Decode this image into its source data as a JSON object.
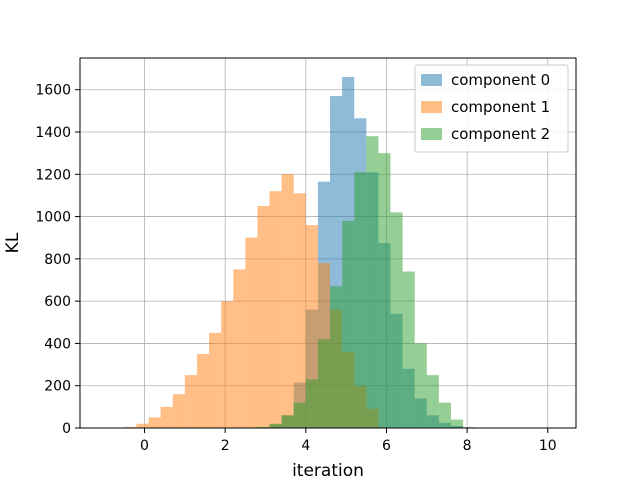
{
  "chart_data": {
    "type": "histogram",
    "title": "",
    "xlabel": "iteration",
    "ylabel": "KL",
    "xlim": [
      -1.6,
      10.7
    ],
    "ylim": [
      0,
      1750
    ],
    "xticks": [
      0,
      2,
      4,
      6,
      8,
      10
    ],
    "yticks": [
      0,
      200,
      400,
      600,
      800,
      1000,
      1200,
      1400,
      1600
    ],
    "grid": true,
    "legend_position": "top-right",
    "bar_alpha": 0.5,
    "series": [
      {
        "name": "component 0",
        "color": "#1f77b4",
        "bin_edges": [
          2.5,
          2.8,
          3.1,
          3.4,
          3.7,
          4.0,
          4.3,
          4.6,
          4.9,
          5.2,
          5.5,
          5.8,
          6.1,
          6.4,
          6.7,
          7.0,
          7.3,
          7.6,
          7.9,
          8.2,
          8.5
        ],
        "counts": [
          1,
          2,
          18,
          60,
          215,
          560,
          1165,
          1570,
          1660,
          1465,
          1210,
          875,
          540,
          280,
          140,
          60,
          25,
          10,
          4,
          1
        ]
      },
      {
        "name": "component 1",
        "color": "#ff7f0e",
        "bin_edges": [
          -0.5,
          -0.2,
          0.1,
          0.4,
          0.7,
          1.0,
          1.3,
          1.6,
          1.9,
          2.2,
          2.5,
          2.8,
          3.1,
          3.4,
          3.7,
          4.0,
          4.3,
          4.6,
          4.9,
          5.2,
          5.5,
          5.8
        ],
        "counts": [
          5,
          20,
          50,
          100,
          160,
          250,
          350,
          450,
          600,
          750,
          900,
          1050,
          1120,
          1200,
          1110,
          960,
          780,
          560,
          360,
          200,
          90
        ]
      },
      {
        "name": "component 2",
        "color": "#2ca02c",
        "bin_edges": [
          2.8,
          3.1,
          3.4,
          3.7,
          4.0,
          4.3,
          4.6,
          4.9,
          5.2,
          5.5,
          5.8,
          6.1,
          6.4,
          6.7,
          7.0,
          7.3,
          7.6,
          7.9
        ],
        "counts": [
          5,
          20,
          60,
          120,
          230,
          420,
          670,
          980,
          1210,
          1380,
          1300,
          1020,
          740,
          400,
          250,
          120,
          40
        ]
      }
    ]
  }
}
